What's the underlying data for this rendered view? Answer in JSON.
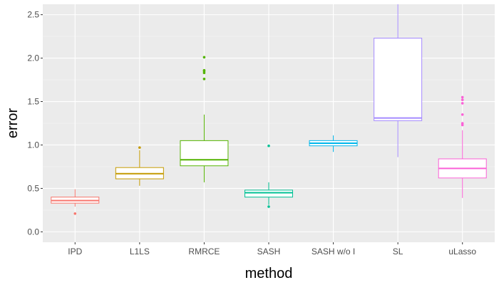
{
  "chart_data": {
    "type": "box",
    "xlabel": "method",
    "ylabel": "error",
    "ylim": [
      -0.12,
      2.62
    ],
    "yticks": [
      0.0,
      0.5,
      1.0,
      1.5,
      2.0,
      2.5
    ],
    "ytick_labels": [
      "0.0",
      "0.5",
      "1.0",
      "1.5",
      "2.0",
      "2.5"
    ],
    "grid": true,
    "legend": "none",
    "categories": [
      "IPD",
      "L1LS",
      "RMRCE",
      "SASH",
      "SASH w/o I",
      "SL",
      "uLasso"
    ],
    "series": [
      {
        "category": "IPD",
        "color": "#F8766D",
        "whisker_low": 0.29,
        "q1": 0.33,
        "median": 0.36,
        "q3": 0.4,
        "whisker_high": 0.49,
        "outliers": [
          0.21
        ]
      },
      {
        "category": "L1LS",
        "color": "#C49A00",
        "whisker_low": 0.53,
        "q1": 0.61,
        "median": 0.67,
        "q3": 0.74,
        "whisker_high": 0.94,
        "outliers": [
          0.97
        ]
      },
      {
        "category": "RMRCE",
        "color": "#53B400",
        "whisker_low": 0.57,
        "q1": 0.76,
        "median": 0.83,
        "q3": 1.05,
        "whisker_high": 1.35,
        "outliers": [
          1.76,
          1.83,
          1.85,
          1.86,
          2.01
        ]
      },
      {
        "category": "SASH",
        "color": "#00C094",
        "whisker_low": 0.31,
        "q1": 0.4,
        "median": 0.45,
        "q3": 0.48,
        "whisker_high": 0.57,
        "outliers": [
          0.29,
          0.99
        ]
      },
      {
        "category": "SASH w/o I",
        "color": "#00B6EB",
        "whisker_low": 0.92,
        "q1": 0.99,
        "median": 1.02,
        "q3": 1.05,
        "whisker_high": 1.11,
        "outliers": []
      },
      {
        "category": "SL",
        "color": "#A58AFF",
        "whisker_low": 0.86,
        "q1": 1.28,
        "median": 1.31,
        "q3": 2.23,
        "whisker_high": 2.62,
        "outliers": []
      },
      {
        "category": "uLasso",
        "color": "#FB61D7",
        "whisker_low": 0.39,
        "q1": 0.62,
        "median": 0.73,
        "q3": 0.84,
        "whisker_high": 1.17,
        "outliers": [
          1.23,
          1.25,
          1.35,
          1.48,
          1.52,
          1.55
        ]
      }
    ]
  }
}
